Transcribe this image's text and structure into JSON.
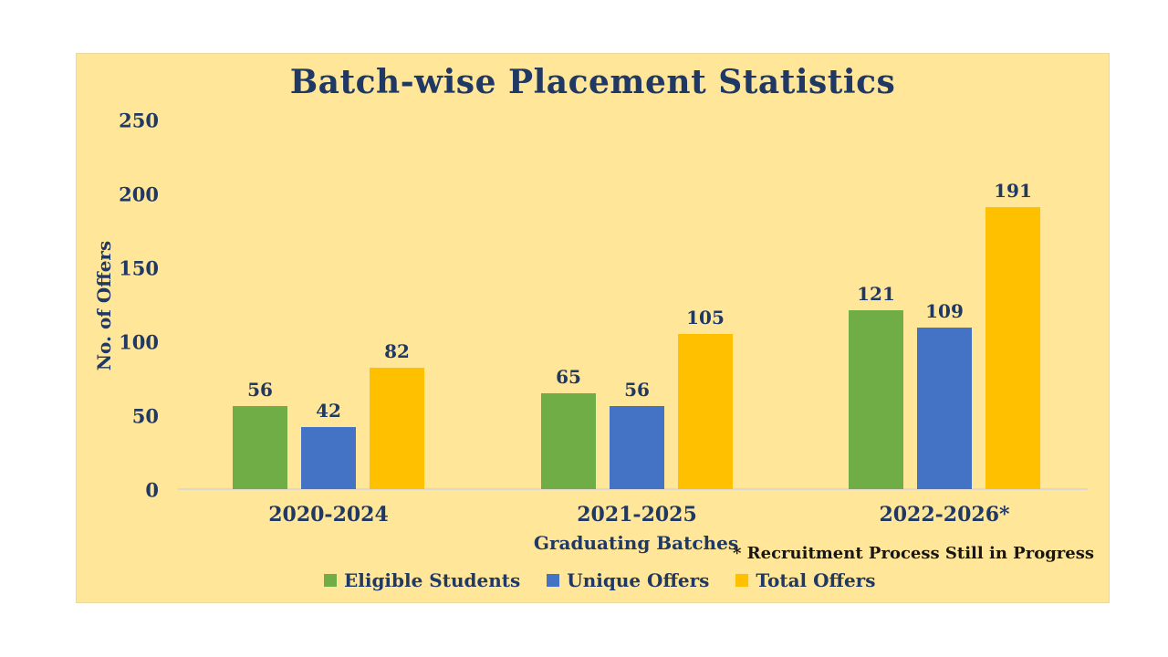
{
  "page": {
    "background_color": "#ffffff"
  },
  "chart_area": {
    "background_color": "#FFE699",
    "border_color": "#e9d99c"
  },
  "chart_data": {
    "type": "bar",
    "title": "Batch-wise Placement Statistics",
    "categories": [
      "2020-2024",
      "2021-2025",
      "2022-2026*"
    ],
    "series": [
      {
        "name": "Eligible Students",
        "color": "#70AD47",
        "values": [
          56,
          65,
          121
        ]
      },
      {
        "name": "Unique Offers",
        "color": "#4472C4",
        "values": [
          42,
          56,
          109
        ]
      },
      {
        "name": "Total Offers",
        "color": "#FFC000",
        "values": [
          82,
          105,
          191
        ]
      }
    ],
    "xlabel": "Graduating Batches",
    "ylabel": "No. of Offers",
    "ylim": [
      0,
      250
    ],
    "yticks": [
      0,
      50,
      100,
      150,
      200,
      250
    ],
    "grid": false,
    "data_labels": true,
    "legend_position": "bottom",
    "note": "* Recruitment Process Still in Progress",
    "text_color": "#1F3864",
    "note_color": "#161616",
    "axis_line_color": "#DBD8CE"
  }
}
